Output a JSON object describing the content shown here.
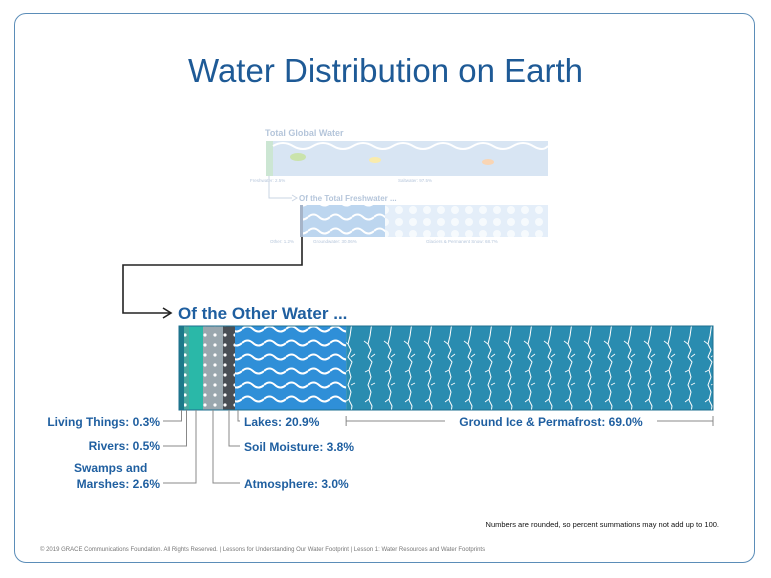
{
  "title": "Water Distribution on Earth",
  "top_panel": {
    "title": "Total Global Water",
    "freshwater": "Freshwater: 2.5%",
    "saltwater": "Saltwater: 97.5%"
  },
  "mid_panel": {
    "title": "Of the Total Freshwater ...",
    "other": "Other: 1.2%",
    "groundwater": "Groundwater: 30.06%",
    "glaciers": "Glaciers & Permanent Snow: 68.7%"
  },
  "other_water": {
    "title": "Of the Other Water ...",
    "segments": [
      {
        "name": "Living Things",
        "label": "Living Things: 0.3%",
        "value": 0.3,
        "color": "#1d7a8a"
      },
      {
        "name": "Rivers",
        "label": "Rivers: 0.5%",
        "value": 0.5,
        "color": "#4aa8a0"
      },
      {
        "name": "Swamps and Marshes",
        "label_line1": "Swamps and",
        "label_line2": "Marshes: 2.6%",
        "value": 2.6,
        "color": "#2ab8a8"
      },
      {
        "name": "Atmosphere",
        "label": "Atmosphere: 3.0%",
        "value": 3.0,
        "color": "#9aa7ae"
      },
      {
        "name": "Soil Moisture",
        "label": "Soil Moisture: 3.8%",
        "value": 3.8,
        "color": "#4a4f55"
      },
      {
        "name": "Lakes",
        "label": "Lakes: 20.9%",
        "value": 20.9,
        "color": "#2f8fd8"
      },
      {
        "name": "Ground Ice & Permafrost",
        "label": "Ground Ice & Permafrost: 69.0%",
        "value": 69.0,
        "color": "#2a8cb0"
      }
    ]
  },
  "note": "Numbers are rounded, so percent summations may not add up to 100.",
  "footer": "© 2019 GRACE Communications Foundation. All Rights Reserved. | Lessons for Understanding Our Water Footprint | Lesson 1: Water Resources and Water Footprints",
  "colors": {
    "title": "#1e5a96",
    "label": "#1f5fa0",
    "border": "#5b8db8"
  }
}
